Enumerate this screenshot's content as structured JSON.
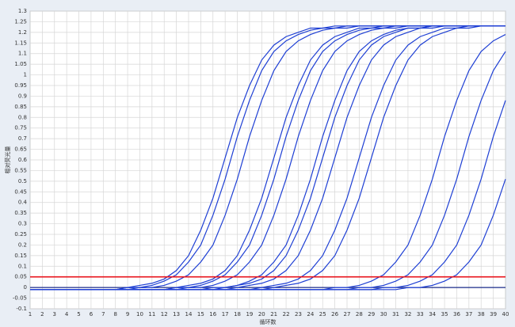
{
  "chart_data": {
    "type": "line",
    "ylabel": "相对荧光量",
    "xlabel": "循环数",
    "x": [
      1,
      2,
      3,
      4,
      5,
      6,
      7,
      8,
      9,
      10,
      11,
      12,
      13,
      14,
      15,
      16,
      17,
      18,
      19,
      20,
      21,
      22,
      23,
      24,
      25,
      26,
      27,
      28,
      29,
      30,
      31,
      32,
      33,
      34,
      35,
      36,
      37,
      38,
      39,
      40
    ],
    "xlim": [
      1,
      40
    ],
    "xticks": [
      1,
      2,
      3,
      4,
      5,
      6,
      7,
      8,
      9,
      10,
      11,
      12,
      13,
      14,
      15,
      16,
      17,
      18,
      19,
      20,
      21,
      22,
      23,
      24,
      25,
      26,
      27,
      28,
      29,
      30,
      31,
      32,
      33,
      34,
      35,
      36,
      37,
      38,
      39,
      40
    ],
    "ylim": [
      -0.1,
      1.3
    ],
    "yticks": [
      -0.1,
      -0.05,
      0,
      0.05,
      0.1,
      0.15,
      0.2,
      0.25,
      0.3,
      0.35,
      0.4,
      0.45,
      0.5,
      0.55,
      0.6,
      0.65,
      0.7,
      0.75,
      0.8,
      0.85,
      0.9,
      0.95,
      1,
      1.05,
      1.1,
      1.15,
      1.2,
      1.25,
      1.3
    ],
    "grid": true,
    "threshold": 0.05,
    "threshold_color": "#e8141c",
    "baseline": 0,
    "baseline_color": "#1a2a8a",
    "series": [
      {
        "color": "#1e3fd4",
        "values": [
          -0.01,
          -0.01,
          -0.01,
          -0.01,
          -0.01,
          -0.01,
          -0.01,
          -0.01,
          0,
          0.01,
          0.02,
          0.04,
          0.08,
          0.15,
          0.27,
          0.42,
          0.61,
          0.8,
          0.95,
          1.07,
          1.14,
          1.18,
          1.2,
          1.22,
          1.22,
          1.23,
          1.23,
          1.23,
          1.23,
          1.23,
          1.23,
          1.23,
          1.23,
          1.23,
          1.23,
          1.23,
          1.23,
          1.23,
          1.23,
          1.23
        ]
      },
      {
        "color": "#1e3fd4",
        "values": [
          -0.01,
          -0.01,
          -0.01,
          -0.01,
          -0.01,
          -0.01,
          -0.01,
          -0.01,
          0,
          0,
          0.01,
          0.03,
          0.06,
          0.12,
          0.2,
          0.34,
          0.51,
          0.71,
          0.88,
          1.02,
          1.11,
          1.16,
          1.19,
          1.21,
          1.22,
          1.22,
          1.23,
          1.23,
          1.23,
          1.23,
          1.23,
          1.23,
          1.23,
          1.23,
          1.23,
          1.23,
          1.23,
          1.23,
          1.23,
          1.23
        ]
      },
      {
        "color": "#1e3fd4",
        "values": [
          -0.01,
          -0.01,
          -0.01,
          -0.01,
          -0.01,
          -0.01,
          -0.01,
          -0.01,
          -0.01,
          0,
          0,
          0.01,
          0.03,
          0.06,
          0.12,
          0.2,
          0.34,
          0.51,
          0.71,
          0.88,
          1.02,
          1.11,
          1.16,
          1.19,
          1.21,
          1.22,
          1.22,
          1.23,
          1.23,
          1.23,
          1.23,
          1.23,
          1.23,
          1.23,
          1.23,
          1.23,
          1.23,
          1.23,
          1.23,
          1.23
        ]
      },
      {
        "color": "#1e3fd4",
        "values": [
          -0.01,
          -0.01,
          -0.01,
          -0.01,
          -0.01,
          -0.01,
          -0.01,
          -0.01,
          -0.01,
          -0.01,
          -0.01,
          -0.01,
          0,
          0.01,
          0.02,
          0.04,
          0.08,
          0.15,
          0.27,
          0.42,
          0.61,
          0.8,
          0.95,
          1.07,
          1.14,
          1.18,
          1.2,
          1.22,
          1.22,
          1.23,
          1.23,
          1.23,
          1.23,
          1.23,
          1.23,
          1.23,
          1.23,
          1.23,
          1.23,
          1.23
        ]
      },
      {
        "color": "#1e3fd4",
        "values": [
          -0.01,
          -0.01,
          -0.01,
          -0.01,
          -0.01,
          -0.01,
          -0.01,
          -0.01,
          -0.01,
          -0.01,
          -0.01,
          -0.01,
          0,
          0,
          0.01,
          0.03,
          0.06,
          0.12,
          0.2,
          0.34,
          0.51,
          0.71,
          0.88,
          1.02,
          1.11,
          1.16,
          1.19,
          1.21,
          1.22,
          1.22,
          1.23,
          1.23,
          1.23,
          1.23,
          1.23,
          1.23,
          1.23,
          1.23,
          1.23,
          1.23
        ]
      },
      {
        "color": "#1e3fd4",
        "values": [
          -0.01,
          -0.01,
          -0.01,
          -0.01,
          -0.01,
          -0.01,
          -0.01,
          -0.01,
          -0.01,
          -0.01,
          -0.01,
          -0.01,
          -0.01,
          0,
          0,
          0.01,
          0.03,
          0.06,
          0.12,
          0.2,
          0.34,
          0.51,
          0.71,
          0.88,
          1.02,
          1.11,
          1.16,
          1.19,
          1.21,
          1.22,
          1.22,
          1.23,
          1.23,
          1.23,
          1.23,
          1.23,
          1.23,
          1.23,
          1.23,
          1.23
        ]
      },
      {
        "color": "#1e3fd4",
        "values": [
          -0.01,
          -0.01,
          -0.01,
          -0.01,
          -0.01,
          -0.01,
          -0.01,
          -0.01,
          -0.01,
          -0.01,
          -0.01,
          -0.01,
          -0.01,
          -0.01,
          -0.01,
          0,
          0,
          0.01,
          0.03,
          0.06,
          0.12,
          0.2,
          0.34,
          0.51,
          0.71,
          0.88,
          1.02,
          1.11,
          1.16,
          1.19,
          1.21,
          1.22,
          1.22,
          1.23,
          1.23,
          1.23,
          1.23,
          1.23,
          1.23,
          1.23
        ]
      },
      {
        "color": "#1e3fd4",
        "values": [
          -0.01,
          -0.01,
          -0.01,
          -0.01,
          -0.01,
          -0.01,
          -0.01,
          -0.01,
          -0.01,
          -0.01,
          -0.01,
          -0.01,
          -0.01,
          -0.01,
          -0.01,
          -0.01,
          0,
          0.01,
          0.02,
          0.04,
          0.08,
          0.15,
          0.27,
          0.42,
          0.61,
          0.8,
          0.95,
          1.07,
          1.14,
          1.18,
          1.2,
          1.22,
          1.22,
          1.23,
          1.23,
          1.23,
          1.23,
          1.23,
          1.23,
          1.23
        ]
      },
      {
        "color": "#1e3fd4",
        "values": [
          -0.01,
          -0.01,
          -0.01,
          -0.01,
          -0.01,
          -0.01,
          -0.01,
          -0.01,
          -0.01,
          -0.01,
          -0.01,
          -0.01,
          -0.01,
          -0.01,
          -0.01,
          -0.01,
          -0.01,
          0,
          0.01,
          0.02,
          0.04,
          0.08,
          0.15,
          0.27,
          0.42,
          0.61,
          0.8,
          0.95,
          1.07,
          1.14,
          1.18,
          1.2,
          1.22,
          1.22,
          1.23,
          1.23,
          1.23,
          1.23,
          1.23,
          1.23
        ]
      },
      {
        "color": "#1e3fd4",
        "values": [
          -0.01,
          -0.01,
          -0.01,
          -0.01,
          -0.01,
          -0.01,
          -0.01,
          -0.01,
          -0.01,
          -0.01,
          -0.01,
          -0.01,
          -0.01,
          -0.01,
          -0.01,
          -0.01,
          -0.01,
          -0.01,
          -0.01,
          0,
          0.01,
          0.02,
          0.04,
          0.08,
          0.15,
          0.27,
          0.42,
          0.61,
          0.8,
          0.95,
          1.07,
          1.14,
          1.18,
          1.2,
          1.22,
          1.22,
          1.23,
          1.23,
          1.23,
          1.23
        ]
      },
      {
        "color": "#1e3fd4",
        "values": [
          -0.01,
          -0.01,
          -0.01,
          -0.01,
          -0.01,
          -0.01,
          -0.01,
          -0.01,
          -0.01,
          -0.01,
          -0.01,
          -0.01,
          -0.01,
          -0.01,
          -0.01,
          -0.01,
          -0.01,
          -0.01,
          -0.01,
          -0.01,
          0,
          0.01,
          0.02,
          0.04,
          0.08,
          0.15,
          0.27,
          0.42,
          0.61,
          0.8,
          0.95,
          1.07,
          1.14,
          1.18,
          1.2,
          1.22,
          1.22,
          1.23,
          1.23,
          1.23
        ]
      },
      {
        "color": "#1e3fd4",
        "values": [
          -0.01,
          -0.01,
          -0.01,
          -0.01,
          -0.01,
          -0.01,
          -0.01,
          -0.01,
          -0.01,
          -0.01,
          -0.01,
          -0.01,
          -0.01,
          -0.01,
          -0.01,
          -0.01,
          -0.01,
          -0.01,
          -0.01,
          -0.01,
          -0.01,
          -0.01,
          -0.01,
          -0.01,
          -0.01,
          0,
          0,
          0.01,
          0.03,
          0.06,
          0.12,
          0.2,
          0.34,
          0.51,
          0.71,
          0.88,
          1.02,
          1.11,
          1.16,
          1.19
        ]
      },
      {
        "color": "#1e3fd4",
        "values": [
          -0.01,
          -0.01,
          -0.01,
          -0.01,
          -0.01,
          -0.01,
          -0.01,
          -0.01,
          -0.01,
          -0.01,
          -0.01,
          -0.01,
          -0.01,
          -0.01,
          -0.01,
          -0.01,
          -0.01,
          -0.01,
          -0.01,
          -0.01,
          -0.01,
          -0.01,
          -0.01,
          -0.01,
          -0.01,
          -0.01,
          -0.01,
          0,
          0,
          0.01,
          0.03,
          0.06,
          0.12,
          0.2,
          0.34,
          0.51,
          0.71,
          0.88,
          1.02,
          1.11
        ]
      },
      {
        "color": "#1e3fd4",
        "values": [
          -0.01,
          -0.01,
          -0.01,
          -0.01,
          -0.01,
          -0.01,
          -0.01,
          -0.01,
          -0.01,
          -0.01,
          -0.01,
          -0.01,
          -0.01,
          -0.01,
          -0.01,
          -0.01,
          -0.01,
          -0.01,
          -0.01,
          -0.01,
          -0.01,
          -0.01,
          -0.01,
          -0.01,
          -0.01,
          -0.01,
          -0.01,
          -0.01,
          -0.01,
          0,
          0,
          0.01,
          0.03,
          0.06,
          0.12,
          0.2,
          0.34,
          0.51,
          0.71,
          0.88
        ]
      },
      {
        "color": "#1e3fd4",
        "values": [
          -0.01,
          -0.01,
          -0.01,
          -0.01,
          -0.01,
          -0.01,
          -0.01,
          -0.01,
          -0.01,
          -0.01,
          -0.01,
          -0.01,
          -0.01,
          -0.01,
          -0.01,
          -0.01,
          -0.01,
          -0.01,
          -0.01,
          -0.01,
          -0.01,
          -0.01,
          -0.01,
          -0.01,
          -0.01,
          -0.01,
          -0.01,
          -0.01,
          -0.01,
          -0.01,
          -0.01,
          0,
          0,
          0.01,
          0.03,
          0.06,
          0.12,
          0.2,
          0.34,
          0.51
        ]
      }
    ]
  }
}
